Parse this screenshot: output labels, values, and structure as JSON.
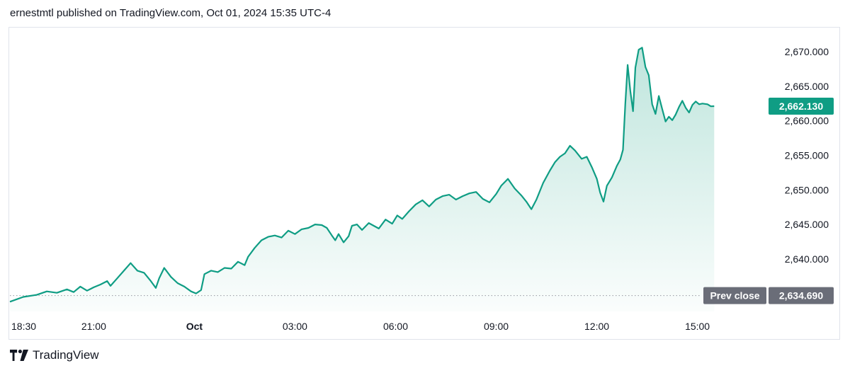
{
  "header": {
    "published_text": "ernestmtl published on TradingView.com, Oct 01, 2024 15:35 UTC-4"
  },
  "footer": {
    "brand_label": "TradingView"
  },
  "colors": {
    "line": "#0f9d84",
    "fill": "#1aa385",
    "badge": "#0f9d84",
    "prev_close_bg": "#6a6d78",
    "axis_text": "#131722",
    "border": "#e0e3eb"
  },
  "chart_data": {
    "type": "area",
    "price_axis": {
      "ticks": [
        2640,
        2645,
        2650,
        2655,
        2660,
        2665,
        2670
      ],
      "tick_labels": [
        "2,640.000",
        "2,645.000",
        "2,650.000",
        "2,655.000",
        "2,660.000",
        "2,665.000",
        "2,670.000"
      ],
      "range": [
        2632.4,
        2673.4
      ]
    },
    "time_axis": {
      "labels": [
        "18:30",
        "21:00",
        "Oct",
        "03:00",
        "06:00",
        "09:00",
        "12:00",
        "15:00"
      ],
      "hours": [
        18.5,
        21,
        24,
        27,
        30,
        33,
        36,
        39
      ],
      "range_hours": [
        18.5,
        39.6
      ]
    },
    "last_price": {
      "value": 2662.13,
      "label": "2,662.130"
    },
    "prev_close": {
      "label_text": "Prev close",
      "value": 2634.69,
      "value_label": "2,634.690"
    },
    "series": [
      {
        "points": [
          [
            18.5,
            2633.8
          ],
          [
            18.9,
            2634.5
          ],
          [
            19.3,
            2634.8
          ],
          [
            19.6,
            2635.3
          ],
          [
            19.9,
            2635.1
          ],
          [
            20.2,
            2635.6
          ],
          [
            20.4,
            2635.2
          ],
          [
            20.6,
            2636.0
          ],
          [
            20.8,
            2635.4
          ],
          [
            21.0,
            2635.9
          ],
          [
            21.2,
            2636.3
          ],
          [
            21.4,
            2636.8
          ],
          [
            21.5,
            2636.1
          ],
          [
            21.7,
            2637.2
          ],
          [
            21.9,
            2638.3
          ],
          [
            22.1,
            2639.4
          ],
          [
            22.3,
            2638.3
          ],
          [
            22.5,
            2638.0
          ],
          [
            22.7,
            2636.8
          ],
          [
            22.85,
            2635.8
          ],
          [
            22.95,
            2637.2
          ],
          [
            23.1,
            2638.7
          ],
          [
            23.3,
            2637.4
          ],
          [
            23.5,
            2636.5
          ],
          [
            23.7,
            2636.0
          ],
          [
            23.9,
            2635.3
          ],
          [
            24.05,
            2635.0
          ],
          [
            24.2,
            2635.5
          ],
          [
            24.3,
            2637.8
          ],
          [
            24.5,
            2638.3
          ],
          [
            24.7,
            2638.1
          ],
          [
            24.9,
            2638.7
          ],
          [
            25.1,
            2638.6
          ],
          [
            25.3,
            2639.6
          ],
          [
            25.5,
            2639.1
          ],
          [
            25.6,
            2640.3
          ],
          [
            25.8,
            2641.6
          ],
          [
            26.0,
            2642.7
          ],
          [
            26.2,
            2643.2
          ],
          [
            26.4,
            2643.4
          ],
          [
            26.6,
            2643.1
          ],
          [
            26.8,
            2644.1
          ],
          [
            27.0,
            2643.6
          ],
          [
            27.2,
            2644.3
          ],
          [
            27.4,
            2644.5
          ],
          [
            27.6,
            2645.0
          ],
          [
            27.8,
            2644.9
          ],
          [
            27.95,
            2644.5
          ],
          [
            28.1,
            2643.4
          ],
          [
            28.2,
            2642.7
          ],
          [
            28.3,
            2643.6
          ],
          [
            28.45,
            2642.4
          ],
          [
            28.6,
            2643.3
          ],
          [
            28.7,
            2644.8
          ],
          [
            28.85,
            2645.0
          ],
          [
            29.0,
            2644.2
          ],
          [
            29.2,
            2645.2
          ],
          [
            29.35,
            2644.8
          ],
          [
            29.5,
            2644.4
          ],
          [
            29.7,
            2645.7
          ],
          [
            29.9,
            2645.1
          ],
          [
            30.05,
            2646.3
          ],
          [
            30.2,
            2645.8
          ],
          [
            30.4,
            2646.9
          ],
          [
            30.6,
            2647.9
          ],
          [
            30.8,
            2648.5
          ],
          [
            31.0,
            2647.6
          ],
          [
            31.2,
            2648.6
          ],
          [
            31.4,
            2649.1
          ],
          [
            31.6,
            2649.3
          ],
          [
            31.8,
            2648.6
          ],
          [
            32.0,
            2649.1
          ],
          [
            32.2,
            2649.5
          ],
          [
            32.4,
            2649.7
          ],
          [
            32.6,
            2648.7
          ],
          [
            32.8,
            2648.2
          ],
          [
            33.0,
            2649.4
          ],
          [
            33.15,
            2650.6
          ],
          [
            33.35,
            2651.6
          ],
          [
            33.55,
            2650.2
          ],
          [
            33.75,
            2649.2
          ],
          [
            33.9,
            2648.3
          ],
          [
            34.05,
            2647.2
          ],
          [
            34.2,
            2648.6
          ],
          [
            34.4,
            2651.0
          ],
          [
            34.6,
            2652.8
          ],
          [
            34.75,
            2654.0
          ],
          [
            34.9,
            2654.8
          ],
          [
            35.05,
            2655.3
          ],
          [
            35.2,
            2656.4
          ],
          [
            35.35,
            2655.7
          ],
          [
            35.55,
            2654.5
          ],
          [
            35.7,
            2654.8
          ],
          [
            35.85,
            2653.3
          ],
          [
            36.0,
            2651.6
          ],
          [
            36.1,
            2649.6
          ],
          [
            36.2,
            2648.3
          ],
          [
            36.3,
            2650.6
          ],
          [
            36.45,
            2651.8
          ],
          [
            36.6,
            2653.5
          ],
          [
            36.7,
            2654.4
          ],
          [
            36.78,
            2655.8
          ],
          [
            36.85,
            2662.5
          ],
          [
            36.92,
            2668.1
          ],
          [
            37.0,
            2664.3
          ],
          [
            37.08,
            2661.4
          ],
          [
            37.15,
            2667.7
          ],
          [
            37.25,
            2670.3
          ],
          [
            37.35,
            2670.6
          ],
          [
            37.45,
            2667.8
          ],
          [
            37.55,
            2666.6
          ],
          [
            37.65,
            2662.4
          ],
          [
            37.75,
            2661.0
          ],
          [
            37.85,
            2663.6
          ],
          [
            37.95,
            2661.7
          ],
          [
            38.05,
            2659.9
          ],
          [
            38.15,
            2660.6
          ],
          [
            38.25,
            2660.1
          ],
          [
            38.35,
            2660.9
          ],
          [
            38.45,
            2662.0
          ],
          [
            38.55,
            2662.9
          ],
          [
            38.65,
            2661.9
          ],
          [
            38.75,
            2661.2
          ],
          [
            38.85,
            2662.3
          ],
          [
            38.95,
            2662.8
          ],
          [
            39.05,
            2662.4
          ],
          [
            39.15,
            2662.5
          ],
          [
            39.3,
            2662.4
          ],
          [
            39.4,
            2662.1
          ],
          [
            39.5,
            2662.13
          ]
        ]
      }
    ]
  }
}
